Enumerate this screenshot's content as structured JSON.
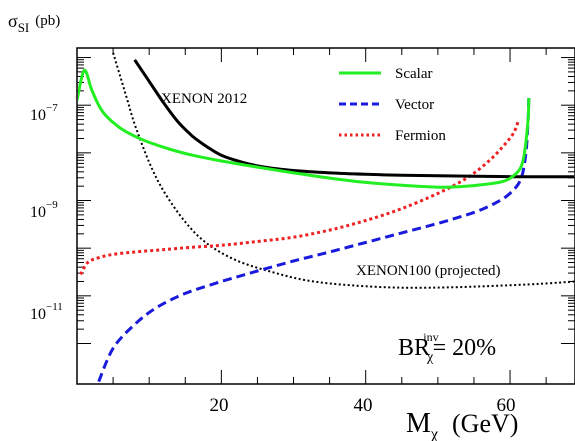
{
  "chart_data": {
    "type": "line",
    "ylabel": "σ",
    "ylabel_sub": "SI",
    "ylabel_unit": "(pb)",
    "xlabel": "M",
    "xlabel_sub": "χ",
    "xlabel_unit": "(GeV)",
    "xlim": [
      0,
      69
    ],
    "ylim_log10": [
      -12.85,
      -5.8
    ],
    "y_scale": "log",
    "grid": false,
    "x_ticks": [
      20,
      40,
      60
    ],
    "y_ticks": [
      {
        "mantissa": "10",
        "exp": "−7",
        "log10": -7
      },
      {
        "mantissa": "10",
        "exp": "−9",
        "log10": -9
      },
      {
        "mantissa": "10",
        "exp": "−11",
        "log10": -11
      }
    ],
    "legend_position": "top-right",
    "series": [
      {
        "name": "Scalar",
        "color": "#22ee22",
        "dash": "solid",
        "x": [
          0,
          1,
          2,
          3,
          4,
          6,
          8,
          10,
          13,
          16,
          20,
          25,
          30,
          35,
          40,
          45,
          50,
          53,
          56,
          59,
          60.5,
          61.5,
          62,
          62.5,
          62.6
        ],
        "y_log10": [
          -6.9,
          -6.27,
          -6.66,
          -7.0,
          -7.22,
          -7.48,
          -7.65,
          -7.78,
          -7.93,
          -8.05,
          -8.17,
          -8.3,
          -8.42,
          -8.53,
          -8.62,
          -8.68,
          -8.72,
          -8.71,
          -8.67,
          -8.6,
          -8.48,
          -8.3,
          -8.0,
          -7.3,
          -6.85
        ]
      },
      {
        "name": "Vector",
        "color": "#1a1adc",
        "dash": "dashed",
        "x": [
          3,
          5,
          8,
          11,
          15,
          20,
          25,
          30,
          35,
          40,
          45,
          50,
          55,
          58,
          60,
          61.5,
          62.2,
          62.5,
          62.6
        ],
        "y_log10": [
          -12.8,
          -12.1,
          -11.6,
          -11.25,
          -10.95,
          -10.7,
          -10.48,
          -10.27,
          -10.08,
          -9.88,
          -9.68,
          -9.48,
          -9.25,
          -9.05,
          -8.85,
          -8.55,
          -8.0,
          -7.3,
          -6.85
        ]
      },
      {
        "name": "Fermion",
        "color": "#ee2222",
        "dash": "dotted",
        "x": [
          0.5,
          1.5,
          3,
          5,
          8,
          12,
          16,
          20,
          25,
          30,
          35,
          40,
          45,
          50,
          54,
          57,
          59,
          60.5,
          61.2
        ],
        "y_log10": [
          -10.55,
          -10.3,
          -10.2,
          -10.13,
          -10.08,
          -10.03,
          -9.98,
          -9.94,
          -9.86,
          -9.77,
          -9.62,
          -9.42,
          -9.17,
          -8.85,
          -8.53,
          -8.18,
          -7.87,
          -7.58,
          -7.3
        ]
      },
      {
        "name": "XENON 2012",
        "color": "#000000",
        "dash": "solid",
        "x": [
          8,
          10,
          12,
          14,
          16,
          18,
          20,
          23,
          26,
          30,
          35,
          40,
          45,
          50,
          55,
          60,
          62,
          66,
          69
        ],
        "y_log10": [
          -6.05,
          -6.5,
          -6.95,
          -7.35,
          -7.65,
          -7.87,
          -8.05,
          -8.2,
          -8.3,
          -8.37,
          -8.42,
          -8.45,
          -8.47,
          -8.48,
          -8.49,
          -8.5,
          -8.5,
          -8.5,
          -8.5
        ]
      },
      {
        "name": "XENON100 (projected)",
        "color": "#000000",
        "dash": "dotted-fine",
        "x": [
          5,
          6,
          7,
          8,
          10,
          12,
          15,
          18,
          22,
          27,
          32,
          38,
          45,
          52,
          58,
          64,
          69
        ],
        "y_log10": [
          -5.9,
          -6.4,
          -6.9,
          -7.4,
          -8.2,
          -8.8,
          -9.45,
          -9.9,
          -10.25,
          -10.5,
          -10.68,
          -10.78,
          -10.83,
          -10.82,
          -10.79,
          -10.75,
          -10.7
        ]
      }
    ],
    "annotations": {
      "xenon2012": "XENON 2012",
      "xenon100": "XENON100 (projected)",
      "br_main": "BR",
      "br_sub": "χ",
      "br_sup": "inv",
      "br_value": "= 20%"
    }
  }
}
